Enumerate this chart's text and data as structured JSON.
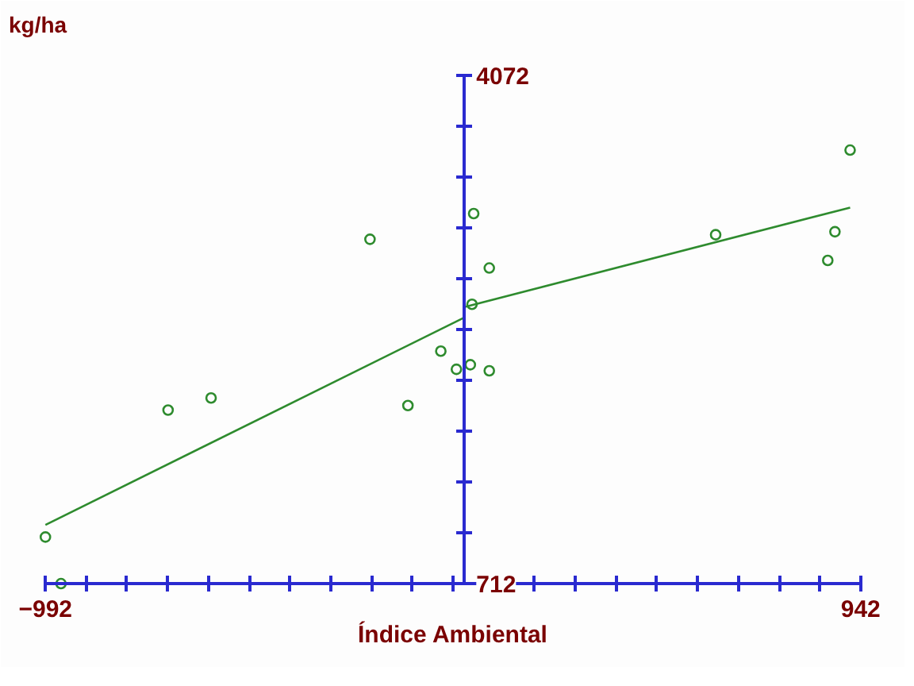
{
  "chart_data": {
    "type": "scatter",
    "xlabel": "Índice Ambiental",
    "ylabel": "kg/ha",
    "xlim": [
      -992,
      942
    ],
    "ylim": [
      712,
      4072
    ],
    "xticks": [
      -992,
      {
        "value": -895.3,
        "label": null
      },
      {
        "value": -798.6,
        "label": null
      },
      {
        "value": -701.9,
        "label": null
      },
      {
        "value": -605.2,
        "label": null
      },
      {
        "value": -508.5,
        "label": null
      },
      {
        "value": -411.8,
        "label": null
      },
      {
        "value": -315.1,
        "label": null
      },
      {
        "value": -218.4,
        "label": null
      },
      {
        "value": -121.7,
        "label": null
      },
      {
        "value": -25,
        "label": null
      },
      {
        "value": 71.7,
        "label": null
      },
      {
        "value": 168.4,
        "label": null
      },
      {
        "value": 265.1,
        "label": null
      },
      {
        "value": 361.8,
        "label": null
      },
      {
        "value": 458.5,
        "label": null
      },
      {
        "value": 555.2,
        "label": null
      },
      {
        "value": 651.9,
        "label": null
      },
      {
        "value": 748.6,
        "label": null
      },
      {
        "value": 845.3,
        "label": null
      },
      942
    ],
    "yticks": [
      712,
      {
        "value": 1048,
        "label": null
      },
      {
        "value": 1384,
        "label": null
      },
      {
        "value": 1720,
        "label": null
      },
      {
        "value": 2056,
        "label": null
      },
      {
        "value": 2392,
        "label": null
      },
      {
        "value": 2728,
        "label": null
      },
      {
        "value": 3064,
        "label": null
      },
      {
        "value": 3400,
        "label": null
      },
      {
        "value": 3736,
        "label": null
      },
      4072
    ],
    "grid": false,
    "marker": "circle",
    "series": [
      {
        "color": "#2e8b2e",
        "x": [
          -222,
          -599,
          -701,
          -992,
          -54,
          -132,
          -17,
          16,
          61,
          24,
          61,
          20,
          917,
          881,
          864,
          598,
          -955
        ],
        "values": [
          2990,
          1940,
          1860,
          1020,
          2250,
          1890,
          2130,
          2160,
          2120,
          3160,
          2800,
          2560,
          3580,
          3040,
          2850,
          3020,
          712
        ]
      },
      {
        "type": "line",
        "color": "#2e8b2e",
        "line_style": "solid",
        "marker": "none",
        "x": [
          -992,
          0
        ],
        "values": [
          1100,
          2470
        ]
      },
      {
        "type": "line",
        "color": "#2e8b2e",
        "line_style": "solid",
        "marker": "none",
        "x": [
          0,
          917
        ],
        "values": [
          2540,
          3200
        ]
      }
    ]
  }
}
